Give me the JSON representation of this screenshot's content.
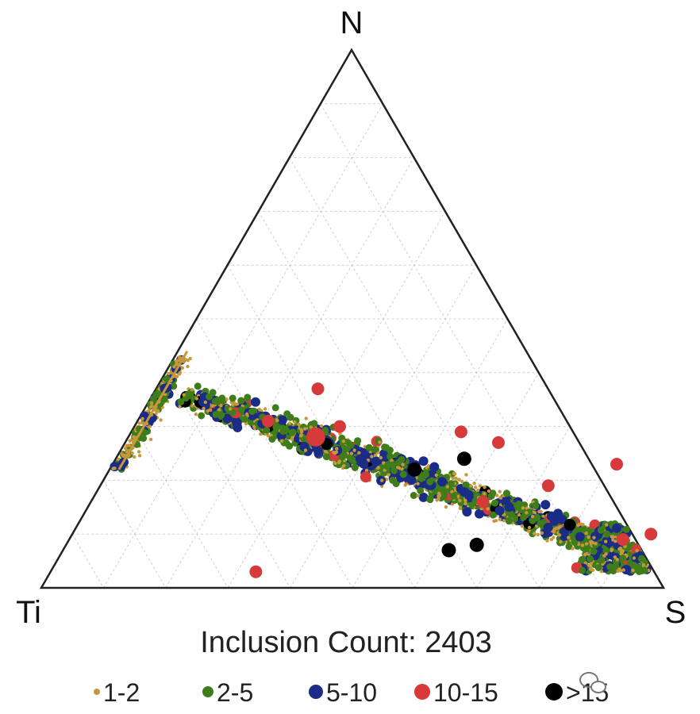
{
  "chart_data": {
    "type": "scatter",
    "subtype": "ternary",
    "vertices": {
      "top": "N",
      "left": "Ti",
      "right": "S"
    },
    "grid": true,
    "grid_divisions": 10,
    "count_label": "Inclusion Count: 2403",
    "legend_position": "bottom",
    "legend": [
      {
        "label": "1-2",
        "color": "#c8973c"
      },
      {
        "label": "2-5",
        "color": "#3f7d1b"
      },
      {
        "label": "5-10",
        "color": "#1a2c86"
      },
      {
        "label": "10-15",
        "color": "#d63a3a"
      },
      {
        "label": ">15",
        "color": "#000000"
      }
    ],
    "point_size_unit": "size class",
    "series": [
      {
        "name": "10-15",
        "color": "#d63a3a",
        "points": [
          {
            "S": 0.33,
            "N": 0.03
          },
          {
            "S": 0.33,
            "N": 0.3
          },
          {
            "S": 0.21,
            "N": 0.31
          },
          {
            "S": 0.72,
            "N": 0.19
          },
          {
            "S": 0.63,
            "N": 0.16
          },
          {
            "S": 0.81,
            "N": 0.23
          },
          {
            "S": 0.49,
            "N": 0.22
          },
          {
            "S": 0.89,
            "N": 0.09
          },
          {
            "S": 0.26,
            "N": 0.37
          },
          {
            "S": 0.53,
            "N": 0.29
          },
          {
            "S": 0.93,
            "N": 0.1
          },
          {
            "S": 0.6,
            "N": 0.27
          }
        ]
      },
      {
        "name": ">15",
        "color": "#000000",
        "points": [
          {
            "S": 0.56,
            "N": 0.24
          },
          {
            "S": 0.62,
            "N": 0.07
          },
          {
            "S": 0.49,
            "N": 0.22
          },
          {
            "S": 0.66,
            "N": 0.08
          }
        ]
      }
    ]
  }
}
